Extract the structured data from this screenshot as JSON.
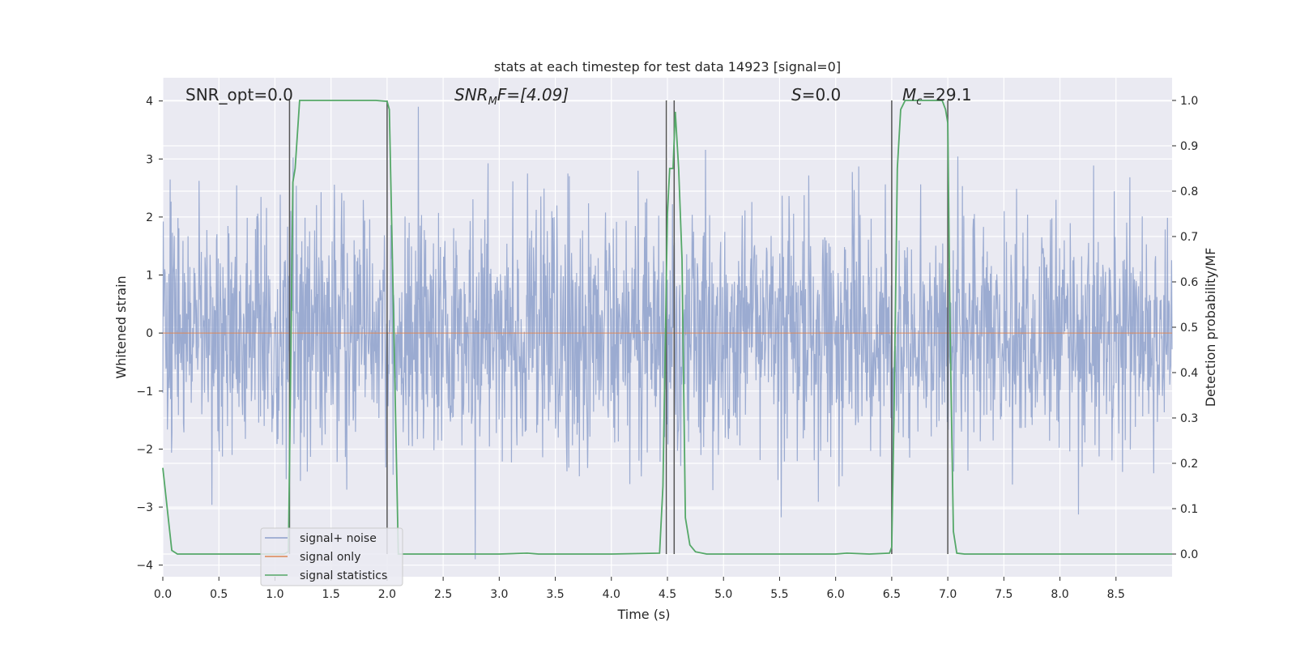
{
  "chart_data": {
    "type": "line",
    "title": "stats at each timestep for test data 14923 [signal=0]",
    "xlabel": "Time (s)",
    "ylabel_left": "Whitened strain",
    "ylabel_right": "Detection probability/MF",
    "xlim": [
      0,
      9
    ],
    "ylim_left": [
      -4.2,
      4.4
    ],
    "ylim_right": [
      -0.05,
      1.05
    ],
    "x_ticks": [
      "0.0",
      "0.5",
      "1.0",
      "1.5",
      "2.0",
      "2.5",
      "3.0",
      "3.5",
      "4.0",
      "4.5",
      "5.0",
      "5.5",
      "6.0",
      "6.5",
      "7.0",
      "7.5",
      "8.0",
      "8.5"
    ],
    "x_tick_values": [
      0,
      0.5,
      1,
      1.5,
      2,
      2.5,
      3,
      3.5,
      4,
      4.5,
      5,
      5.5,
      6,
      6.5,
      7,
      7.5,
      8,
      8.5
    ],
    "y_left_ticks": [
      "−4",
      "−3",
      "−2",
      "−1",
      "0",
      "1",
      "2",
      "3",
      "4"
    ],
    "y_left_tick_values": [
      -4,
      -3,
      -2,
      -1,
      0,
      1,
      2,
      3,
      4
    ],
    "y_right_ticks": [
      "0.0",
      "0.1",
      "0.2",
      "0.3",
      "0.4",
      "0.5",
      "0.6",
      "0.7",
      "0.8",
      "0.9",
      "1.0"
    ],
    "y_right_tick_values": [
      0,
      0.1,
      0.2,
      0.3,
      0.4,
      0.5,
      0.6,
      0.7,
      0.8,
      0.9,
      1.0
    ],
    "grid": true,
    "legend_position": "lower-left",
    "annotations": {
      "snr_opt": "SNR_opt=0.0",
      "snr_mf_main": "SNR",
      "snr_mf_sub": "M",
      "snr_mf_rest": "F=[4.09]",
      "s_italic": "S",
      "s_rest": "=0.0",
      "mc_main": "M",
      "mc_sub": "c",
      "mc_rest": "=29.1"
    },
    "series": [
      {
        "name": "signal+ noise",
        "color": "#8da0cb",
        "note": "noise band approx ±1.6 with spikes to ±3.9"
      },
      {
        "name": "signal only",
        "color": "#dd8452",
        "values_constant": 0
      },
      {
        "name": "signal statistics",
        "color": "#55a868",
        "x": [
          0,
          0.08,
          0.13,
          0.3,
          1.0,
          1.08,
          1.12,
          1.14,
          1.16,
          1.18,
          1.22,
          1.5,
          1.9,
          2.0,
          2.02,
          2.06,
          2.1,
          2.5,
          3.0,
          3.25,
          3.35,
          3.5,
          4.0,
          4.43,
          4.46,
          4.5,
          4.52,
          4.55,
          4.57,
          4.6,
          4.63,
          4.66,
          4.7,
          4.75,
          4.85,
          5.0,
          5.5,
          6.0,
          6.1,
          6.3,
          6.48,
          6.5,
          6.52,
          6.55,
          6.58,
          6.62,
          6.9,
          6.95,
          6.98,
          7.0,
          7.02,
          7.05,
          7.08,
          7.15,
          7.5,
          8.0,
          8.5,
          9.0
        ],
        "y": [
          0.19,
          0.008,
          0.0,
          0.0,
          0.0,
          0.0,
          0.005,
          0.4,
          0.82,
          0.85,
          1.0,
          1.0,
          1.0,
          0.998,
          0.98,
          0.5,
          0.0,
          0.0,
          0.0,
          0.002,
          0.0,
          0.0,
          0.0,
          0.002,
          0.15,
          0.75,
          0.85,
          0.85,
          0.975,
          0.85,
          0.65,
          0.08,
          0.02,
          0.005,
          0.0,
          0.0,
          0.0,
          0.0,
          0.002,
          0.0,
          0.002,
          0.015,
          0.3,
          0.85,
          0.98,
          1.0,
          1.0,
          1.0,
          0.98,
          0.95,
          0.5,
          0.05,
          0.002,
          0.0,
          0.0,
          0.0,
          0.0,
          0.0
        ]
      }
    ],
    "vertical_markers_x": [
      1.13,
      2.0,
      4.49,
      4.56,
      6.5,
      7.0
    ]
  },
  "legend": {
    "items": [
      {
        "label": "signal+ noise",
        "color": "#8da0cb"
      },
      {
        "label": "signal only",
        "color": "#dd8452"
      },
      {
        "label": "signal statistics",
        "color": "#55a868"
      }
    ]
  }
}
